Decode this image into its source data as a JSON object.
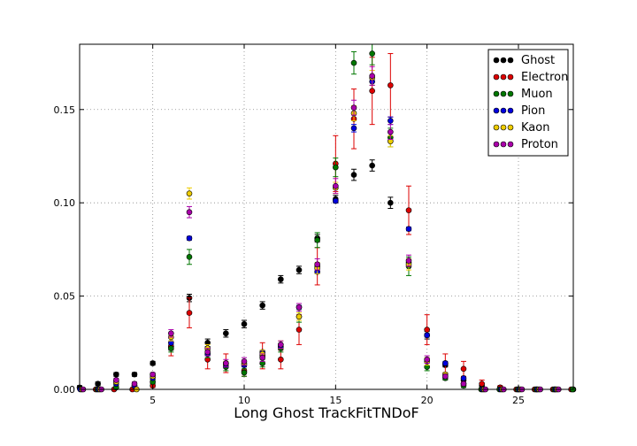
{
  "chart_data": {
    "type": "scatter",
    "title": "",
    "xlabel": "Long Ghost TrackFitTNDoF",
    "ylabel": "",
    "xlim": [
      1,
      28
    ],
    "ylim": [
      0,
      0.185
    ],
    "xticks": [
      5,
      10,
      15,
      20,
      25
    ],
    "xtick_labels": [
      "5",
      "10",
      "15",
      "20",
      "25"
    ],
    "yticks": [
      0.0,
      0.05,
      0.1,
      0.15
    ],
    "ytick_labels": [
      "0.00",
      "0.05",
      "0.10",
      "0.15"
    ],
    "grid": true,
    "legend_position": "top-right",
    "series": [
      {
        "name": "Ghost",
        "color": "#000000",
        "points": [
          {
            "x": 1,
            "y": 0.001,
            "err": 0.001
          },
          {
            "x": 2,
            "y": 0.003,
            "err": 0.001
          },
          {
            "x": 3,
            "y": 0.008,
            "err": 0.001
          },
          {
            "x": 4,
            "y": 0.008,
            "err": 0.001
          },
          {
            "x": 5,
            "y": 0.014,
            "err": 0.001
          },
          {
            "x": 6,
            "y": 0.023,
            "err": 0.002
          },
          {
            "x": 7,
            "y": 0.049,
            "err": 0.002
          },
          {
            "x": 8,
            "y": 0.025,
            "err": 0.002
          },
          {
            "x": 9,
            "y": 0.03,
            "err": 0.002
          },
          {
            "x": 10,
            "y": 0.035,
            "err": 0.002
          },
          {
            "x": 11,
            "y": 0.045,
            "err": 0.002
          },
          {
            "x": 12,
            "y": 0.059,
            "err": 0.002
          },
          {
            "x": 13,
            "y": 0.064,
            "err": 0.002
          },
          {
            "x": 14,
            "y": 0.081,
            "err": 0.002
          },
          {
            "x": 15,
            "y": 0.102,
            "err": 0.002
          },
          {
            "x": 16,
            "y": 0.115,
            "err": 0.003
          },
          {
            "x": 17,
            "y": 0.12,
            "err": 0.003
          },
          {
            "x": 18,
            "y": 0.1,
            "err": 0.003
          },
          {
            "x": 19,
            "y": 0.068,
            "err": 0.002
          },
          {
            "x": 20,
            "y": 0.029,
            "err": 0.002
          },
          {
            "x": 21,
            "y": 0.013,
            "err": 0.001
          },
          {
            "x": 22,
            "y": 0.005,
            "err": 0.001
          },
          {
            "x": 23,
            "y": 0.002,
            "err": 0.001
          },
          {
            "x": 24,
            "y": 0.001,
            "err": 0.0005
          },
          {
            "x": 25,
            "y": 0.0,
            "err": 0
          },
          {
            "x": 26,
            "y": 0.0,
            "err": 0
          },
          {
            "x": 27,
            "y": 0.0,
            "err": 0
          },
          {
            "x": 28,
            "y": 0.0,
            "err": 0
          }
        ]
      },
      {
        "name": "Electron",
        "color": "#dd0000",
        "points": [
          {
            "x": 5,
            "y": 0.002,
            "err": 0.001
          },
          {
            "x": 6,
            "y": 0.023,
            "err": 0.005
          },
          {
            "x": 7,
            "y": 0.041,
            "err": 0.008
          },
          {
            "x": 8,
            "y": 0.016,
            "err": 0.005
          },
          {
            "x": 9,
            "y": 0.014,
            "err": 0.005
          },
          {
            "x": 10,
            "y": 0.01,
            "err": 0.003
          },
          {
            "x": 11,
            "y": 0.018,
            "err": 0.007
          },
          {
            "x": 12,
            "y": 0.016,
            "err": 0.005
          },
          {
            "x": 13,
            "y": 0.032,
            "err": 0.008
          },
          {
            "x": 14,
            "y": 0.066,
            "err": 0.01
          },
          {
            "x": 15,
            "y": 0.121,
            "err": 0.015
          },
          {
            "x": 16,
            "y": 0.145,
            "err": 0.016
          },
          {
            "x": 17,
            "y": 0.16,
            "err": 0.018
          },
          {
            "x": 18,
            "y": 0.163,
            "err": 0.017
          },
          {
            "x": 19,
            "y": 0.096,
            "err": 0.013
          },
          {
            "x": 20,
            "y": 0.032,
            "err": 0.008
          },
          {
            "x": 21,
            "y": 0.014,
            "err": 0.005
          },
          {
            "x": 22,
            "y": 0.011,
            "err": 0.004
          },
          {
            "x": 23,
            "y": 0.003,
            "err": 0.002
          },
          {
            "x": 24,
            "y": 0.001,
            "err": 0.001
          }
        ]
      },
      {
        "name": "Muon",
        "color": "#007700",
        "points": [
          {
            "x": 3,
            "y": 0.001,
            "err": 0.001
          },
          {
            "x": 4,
            "y": 0.002,
            "err": 0.001
          },
          {
            "x": 5,
            "y": 0.004,
            "err": 0.001
          },
          {
            "x": 6,
            "y": 0.022,
            "err": 0.002
          },
          {
            "x": 7,
            "y": 0.071,
            "err": 0.004
          },
          {
            "x": 8,
            "y": 0.019,
            "err": 0.002
          },
          {
            "x": 9,
            "y": 0.012,
            "err": 0.002
          },
          {
            "x": 10,
            "y": 0.009,
            "err": 0.002
          },
          {
            "x": 11,
            "y": 0.014,
            "err": 0.002
          },
          {
            "x": 12,
            "y": 0.022,
            "err": 0.002
          },
          {
            "x": 13,
            "y": 0.039,
            "err": 0.003
          },
          {
            "x": 14,
            "y": 0.08,
            "err": 0.004
          },
          {
            "x": 15,
            "y": 0.119,
            "err": 0.005
          },
          {
            "x": 16,
            "y": 0.175,
            "err": 0.006
          },
          {
            "x": 17,
            "y": 0.18,
            "err": 0.006
          },
          {
            "x": 18,
            "y": 0.135,
            "err": 0.005
          },
          {
            "x": 19,
            "y": 0.066,
            "err": 0.005
          },
          {
            "x": 20,
            "y": 0.012,
            "err": 0.002
          },
          {
            "x": 21,
            "y": 0.006,
            "err": 0.001
          },
          {
            "x": 22,
            "y": 0.002,
            "err": 0.001
          }
        ]
      },
      {
        "name": "Pion",
        "color": "#0000dd",
        "points": [
          {
            "x": 3,
            "y": 0.003,
            "err": 0.0005
          },
          {
            "x": 4,
            "y": 0.002,
            "err": 0.0005
          },
          {
            "x": 5,
            "y": 0.006,
            "err": 0.0005
          },
          {
            "x": 6,
            "y": 0.025,
            "err": 0.001
          },
          {
            "x": 7,
            "y": 0.081,
            "err": 0.001
          },
          {
            "x": 8,
            "y": 0.019,
            "err": 0.001
          },
          {
            "x": 9,
            "y": 0.013,
            "err": 0.001
          },
          {
            "x": 10,
            "y": 0.013,
            "err": 0.001
          },
          {
            "x": 11,
            "y": 0.02,
            "err": 0.001
          },
          {
            "x": 12,
            "y": 0.023,
            "err": 0.001
          },
          {
            "x": 13,
            "y": 0.044,
            "err": 0.001
          },
          {
            "x": 14,
            "y": 0.063,
            "err": 0.001
          },
          {
            "x": 15,
            "y": 0.101,
            "err": 0.001
          },
          {
            "x": 16,
            "y": 0.14,
            "err": 0.002
          },
          {
            "x": 17,
            "y": 0.165,
            "err": 0.002
          },
          {
            "x": 18,
            "y": 0.144,
            "err": 0.002
          },
          {
            "x": 19,
            "y": 0.086,
            "err": 0.001
          },
          {
            "x": 20,
            "y": 0.029,
            "err": 0.001
          },
          {
            "x": 21,
            "y": 0.014,
            "err": 0.001
          },
          {
            "x": 22,
            "y": 0.006,
            "err": 0.0005
          }
        ]
      },
      {
        "name": "Kaon",
        "color": "#eecc00",
        "points": [
          {
            "x": 3,
            "y": 0.004,
            "err": 0.001
          },
          {
            "x": 5,
            "y": 0.007,
            "err": 0.001
          },
          {
            "x": 6,
            "y": 0.028,
            "err": 0.002
          },
          {
            "x": 7,
            "y": 0.105,
            "err": 0.003
          },
          {
            "x": 8,
            "y": 0.022,
            "err": 0.002
          },
          {
            "x": 9,
            "y": 0.014,
            "err": 0.001
          },
          {
            "x": 10,
            "y": 0.014,
            "err": 0.001
          },
          {
            "x": 11,
            "y": 0.019,
            "err": 0.002
          },
          {
            "x": 12,
            "y": 0.024,
            "err": 0.002
          },
          {
            "x": 13,
            "y": 0.039,
            "err": 0.002
          },
          {
            "x": 14,
            "y": 0.065,
            "err": 0.003
          },
          {
            "x": 15,
            "y": 0.108,
            "err": 0.003
          },
          {
            "x": 16,
            "y": 0.148,
            "err": 0.004
          },
          {
            "x": 17,
            "y": 0.167,
            "err": 0.004
          },
          {
            "x": 18,
            "y": 0.133,
            "err": 0.003
          },
          {
            "x": 19,
            "y": 0.067,
            "err": 0.003
          },
          {
            "x": 20,
            "y": 0.015,
            "err": 0.002
          },
          {
            "x": 21,
            "y": 0.008,
            "err": 0.001
          },
          {
            "x": 22,
            "y": 0.003,
            "err": 0.001
          }
        ]
      },
      {
        "name": "Proton",
        "color": "#aa00aa",
        "points": [
          {
            "x": 3,
            "y": 0.005,
            "err": 0.001
          },
          {
            "x": 4,
            "y": 0.003,
            "err": 0.001
          },
          {
            "x": 5,
            "y": 0.008,
            "err": 0.001
          },
          {
            "x": 6,
            "y": 0.03,
            "err": 0.002
          },
          {
            "x": 7,
            "y": 0.095,
            "err": 0.003
          },
          {
            "x": 8,
            "y": 0.02,
            "err": 0.002
          },
          {
            "x": 9,
            "y": 0.014,
            "err": 0.002
          },
          {
            "x": 10,
            "y": 0.015,
            "err": 0.002
          },
          {
            "x": 11,
            "y": 0.017,
            "err": 0.002
          },
          {
            "x": 12,
            "y": 0.024,
            "err": 0.002
          },
          {
            "x": 13,
            "y": 0.044,
            "err": 0.002
          },
          {
            "x": 14,
            "y": 0.067,
            "err": 0.003
          },
          {
            "x": 15,
            "y": 0.109,
            "err": 0.004
          },
          {
            "x": 16,
            "y": 0.151,
            "err": 0.004
          },
          {
            "x": 17,
            "y": 0.168,
            "err": 0.005
          },
          {
            "x": 18,
            "y": 0.138,
            "err": 0.004
          },
          {
            "x": 19,
            "y": 0.069,
            "err": 0.003
          },
          {
            "x": 20,
            "y": 0.016,
            "err": 0.002
          },
          {
            "x": 21,
            "y": 0.007,
            "err": 0.001
          },
          {
            "x": 22,
            "y": 0.003,
            "err": 0.001
          }
        ]
      }
    ]
  }
}
